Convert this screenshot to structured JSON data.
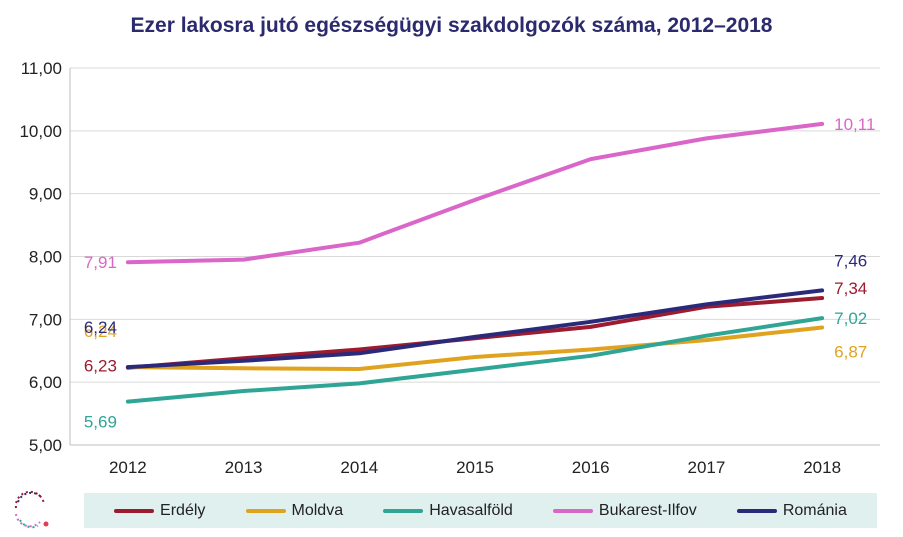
{
  "title": "Ezer lakosra jutó egészségügyi szakdolgozók száma, 2012–2018",
  "chart_data": {
    "type": "line",
    "title": "Ezer lakosra jutó egészségügyi szakdolgozók száma, 2012–2018",
    "xlabel": "",
    "ylabel": "",
    "x": [
      "2012",
      "2013",
      "2014",
      "2015",
      "2016",
      "2017",
      "2018"
    ],
    "ylim": [
      5,
      11
    ],
    "yticks": [
      "5,00",
      "6,00",
      "7,00",
      "8,00",
      "9,00",
      "10,00",
      "11,00"
    ],
    "grid": true,
    "legend_position": "bottom",
    "series": [
      {
        "name": "Erdély",
        "color": "#9c1b2f",
        "values": [
          6.23,
          6.38,
          6.52,
          6.7,
          6.88,
          7.2,
          7.34
        ],
        "labels": [
          {
            "index": 0,
            "text": "6,23"
          },
          {
            "index": 6,
            "text": "7,34"
          }
        ]
      },
      {
        "name": "Moldva",
        "color": "#e0a31f",
        "values": [
          6.24,
          6.22,
          6.21,
          6.4,
          6.52,
          6.67,
          6.87
        ],
        "labels": [
          {
            "index": 0,
            "text": "6,24"
          },
          {
            "index": 6,
            "text": "6,87"
          }
        ]
      },
      {
        "name": "Havasalföld",
        "color": "#2fa596",
        "values": [
          5.69,
          5.86,
          5.98,
          6.2,
          6.42,
          6.74,
          7.02
        ],
        "labels": [
          {
            "index": 0,
            "text": "5,69"
          },
          {
            "index": 6,
            "text": "7,02"
          }
        ]
      },
      {
        "name": "Bukarest-Ilfov",
        "color": "#d966c8",
        "values": [
          7.91,
          7.95,
          8.22,
          8.9,
          9.55,
          9.88,
          10.11
        ],
        "labels": [
          {
            "index": 0,
            "text": "7,91"
          },
          {
            "index": 6,
            "text": "10,11"
          }
        ]
      },
      {
        "name": "Románia",
        "color": "#2b2a7a",
        "values": [
          6.24,
          6.34,
          6.46,
          6.72,
          6.96,
          7.24,
          7.46
        ],
        "labels": [
          {
            "index": 0,
            "text": "6,24"
          },
          {
            "index": 6,
            "text": "7,46"
          }
        ]
      }
    ]
  }
}
